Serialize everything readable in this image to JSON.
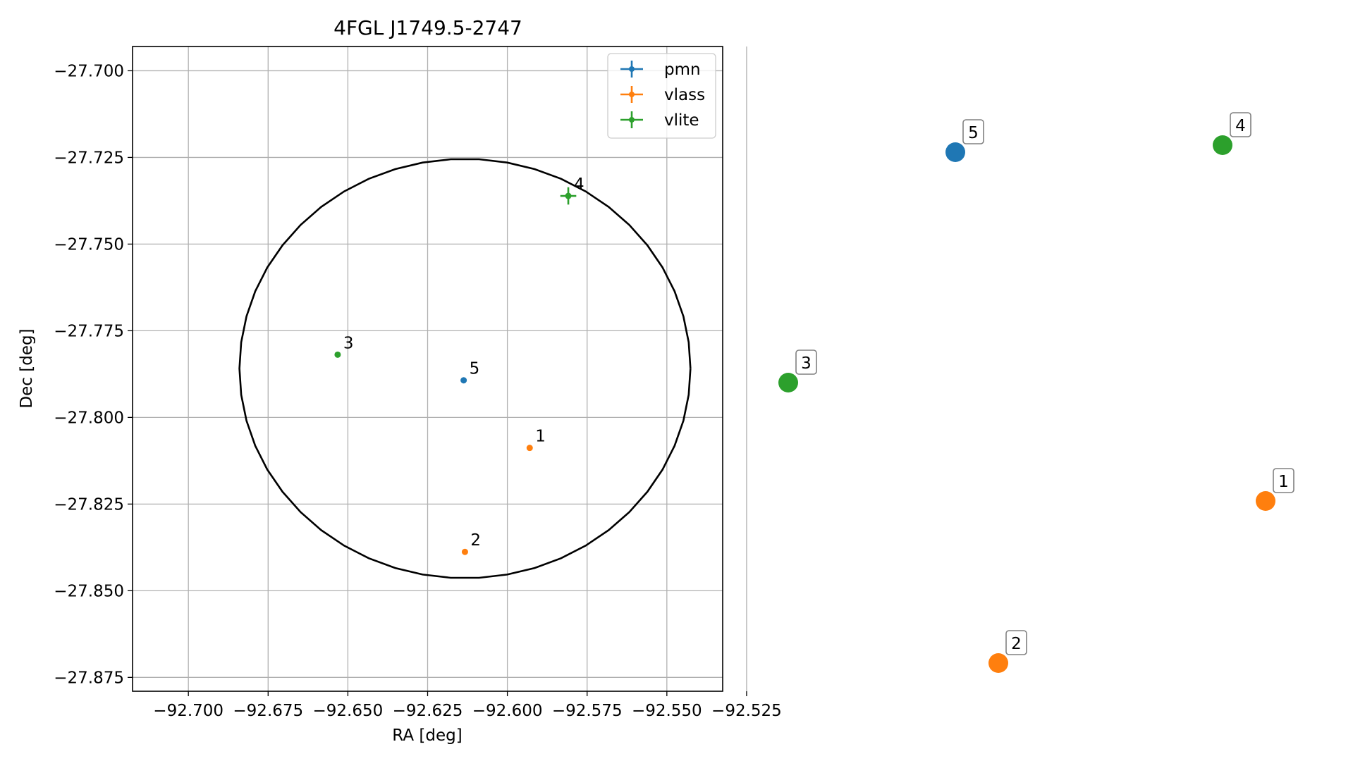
{
  "chart_data": {
    "type": "scatter",
    "title": "4FGL J1749.5-2747",
    "xlabel": "RA [deg]",
    "ylabel": "Dec [deg]",
    "xlim": [
      -92.7175,
      -92.5325
    ],
    "ylim": [
      -27.879,
      -27.693
    ],
    "xticks": [
      -92.7,
      -92.675,
      -92.65,
      -92.625,
      -92.6,
      -92.575,
      -92.55,
      -92.525
    ],
    "xtick_labels": [
      "−92.700",
      "−92.675",
      "−92.650",
      "−92.625",
      "−92.600",
      "−92.575",
      "−92.550",
      "−92.525"
    ],
    "yticks": [
      -27.7,
      -27.725,
      -27.75,
      -27.775,
      -27.8,
      -27.825,
      -27.85,
      -27.875
    ],
    "ytick_labels": [
      "−27.700",
      "−27.725",
      "−27.750",
      "−27.775",
      "−27.800",
      "−27.825",
      "−27.850",
      "−27.875"
    ],
    "grid": true,
    "legend_position": "top-right",
    "series": [
      {
        "name": "pmn",
        "color": "#1f77b4",
        "points": [
          {
            "id": "5",
            "ra": -92.6137,
            "dec": -27.7893,
            "ra_err": 0,
            "dec_err": 0
          }
        ]
      },
      {
        "name": "vlass",
        "color": "#ff7f0e",
        "points": [
          {
            "id": "1",
            "ra": -92.593,
            "dec": -27.8088,
            "ra_err": 0,
            "dec_err": 0
          },
          {
            "id": "2",
            "ra": -92.6133,
            "dec": -27.8388,
            "ra_err": 0,
            "dec_err": 0
          }
        ]
      },
      {
        "name": "vlite",
        "color": "#2ca02c",
        "points": [
          {
            "id": "3",
            "ra": -92.6532,
            "dec": -27.7819,
            "ra_err": 0,
            "dec_err": 0
          },
          {
            "id": "4",
            "ra": -92.5809,
            "dec": -27.7361,
            "ra_err": 0.0025,
            "dec_err": 0.0025
          }
        ]
      }
    ],
    "ellipse": {
      "ra_center": -92.6133,
      "dec_center": -27.7859,
      "ra_radius": 0.0707,
      "dec_radius": 0.0605,
      "color": "#000000"
    },
    "side_panel": {
      "points": [
        {
          "id": "5",
          "color": "#1f77b4"
        },
        {
          "id": "4",
          "color": "#2ca02c"
        },
        {
          "id": "3",
          "color": "#2ca02c"
        },
        {
          "id": "1",
          "color": "#ff7f0e"
        },
        {
          "id": "2",
          "color": "#ff7f0e"
        }
      ]
    }
  }
}
